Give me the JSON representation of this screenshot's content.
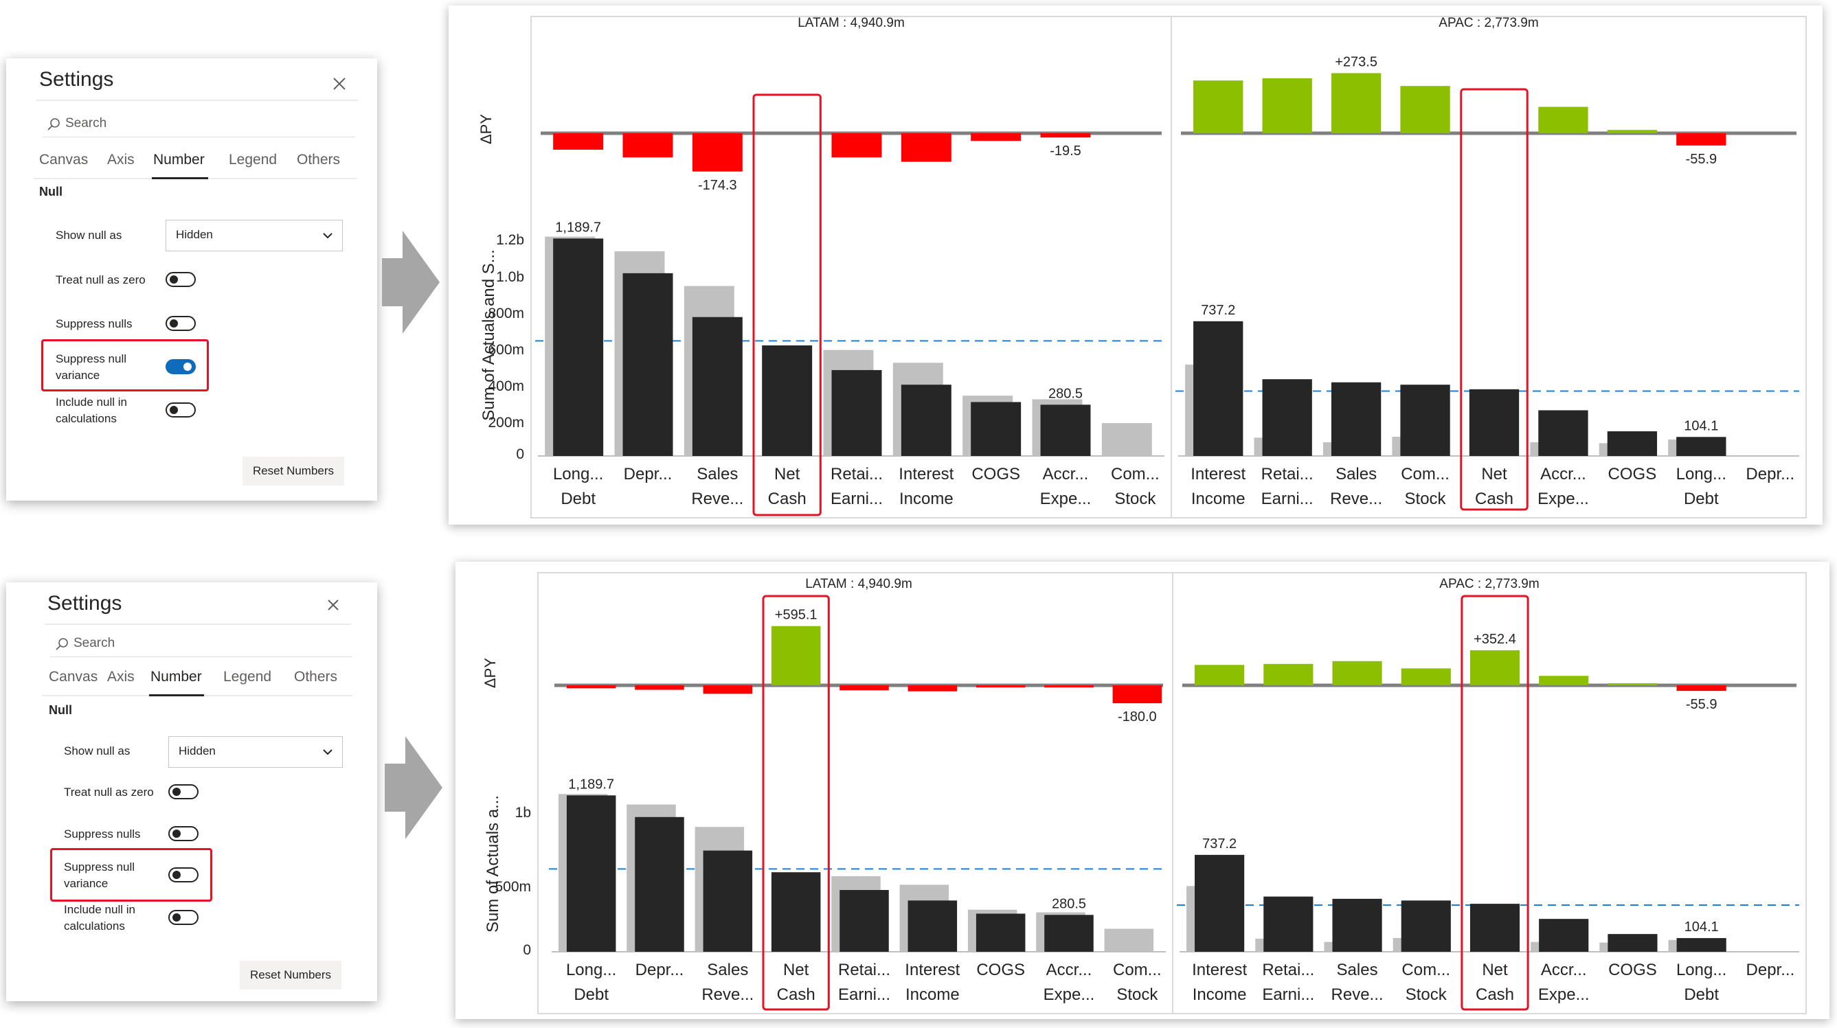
{
  "panels": [
    {
      "settings": {
        "title": "Settings",
        "search": {
          "placeholder": "Search"
        },
        "tabs": [
          "Canvas",
          "Axis",
          "Number",
          "Legend",
          "Others"
        ],
        "active_tab": "Number",
        "section": "Null",
        "show_null_as": {
          "label": "Show null as",
          "value": "Hidden"
        },
        "toggles": [
          {
            "label": [
              "Treat null as zero"
            ],
            "on": false
          },
          {
            "label": [
              "Suppress nulls"
            ],
            "on": false
          },
          {
            "label": [
              "Suppress null",
              "variance"
            ],
            "on": true
          },
          {
            "label": [
              "Include null in",
              "calculations"
            ],
            "on": false
          }
        ],
        "reset_button": "Reset Numbers"
      },
      "chart": {
        "variance_axis_label": "ΔPY",
        "values_axis_label": "Sum of Actuals and S...",
        "y_ticks": [
          "1.2b",
          "1.0b",
          "800m",
          "600m",
          "400m",
          "200m",
          "0"
        ],
        "groups": [
          {
            "title": "LATAM :  4,940.9m",
            "categories": [
              [
                "Long...",
                "Debt"
              ],
              [
                "Depr..."
              ],
              [
                "Sales",
                "Reve..."
              ],
              [
                "Net",
                "Cash"
              ],
              [
                "Retai...",
                "Earni..."
              ],
              [
                "Interest",
                "Income"
              ],
              [
                "COGS"
              ],
              [
                "Accr...",
                "Expe..."
              ],
              [
                "Com...",
                "Stock"
              ]
            ],
            "variance_labels": [
              "",
              "",
              "-174.3",
              "",
              "",
              "",
              "",
              "-19.5",
              ""
            ],
            "value_labels": [
              "1,189.7",
              "",
              "",
              "",
              "",
              "",
              "",
              "280.5",
              ""
            ]
          },
          {
            "title": "APAC :  2,773.9m",
            "categories": [
              [
                "Interest",
                "Income"
              ],
              [
                "Retai...",
                "Earni..."
              ],
              [
                "Sales",
                "Reve..."
              ],
              [
                "Com...",
                "Stock"
              ],
              [
                "Net",
                "Cash"
              ],
              [
                "Accr...",
                "Expe..."
              ],
              [
                "COGS"
              ],
              [
                "Long...",
                "Debt"
              ],
              [
                "Depr..."
              ]
            ],
            "variance_labels": [
              "",
              "",
              "+273.5",
              "",
              "",
              "",
              "",
              "-55.9",
              ""
            ],
            "value_labels": [
              "737.2",
              "",
              "",
              "",
              "",
              "",
              "",
              "104.1",
              ""
            ]
          }
        ]
      }
    },
    {
      "settings": {
        "title": "Settings",
        "search": {
          "placeholder": "Search"
        },
        "tabs": [
          "Canvas",
          "Axis",
          "Number",
          "Legend",
          "Others"
        ],
        "active_tab": "Number",
        "section": "Null",
        "show_null_as": {
          "label": "Show null as",
          "value": "Hidden"
        },
        "toggles": [
          {
            "label": [
              "Treat null as zero"
            ],
            "on": false
          },
          {
            "label": [
              "Suppress nulls"
            ],
            "on": false
          },
          {
            "label": [
              "Suppress null",
              "variance"
            ],
            "on": false
          },
          {
            "label": [
              "Include null in",
              "calculations"
            ],
            "on": false
          }
        ],
        "reset_button": "Reset Numbers"
      },
      "chart": {
        "variance_axis_label": "ΔPY",
        "values_axis_label": "Sum of Actuals a...",
        "y_ticks": [
          "1b",
          "500m",
          "0"
        ],
        "groups": [
          {
            "title": "LATAM :  4,940.9m",
            "categories": [
              [
                "Long...",
                "Debt"
              ],
              [
                "Depr..."
              ],
              [
                "Sales",
                "Reve..."
              ],
              [
                "Net",
                "Cash"
              ],
              [
                "Retai...",
                "Earni..."
              ],
              [
                "Interest",
                "Income"
              ],
              [
                "COGS"
              ],
              [
                "Accr...",
                "Expe..."
              ],
              [
                "Com...",
                "Stock"
              ]
            ],
            "variance_labels": [
              "",
              "",
              "",
              "+595.1",
              "",
              "",
              "",
              "",
              "-180.0"
            ],
            "value_labels": [
              "1,189.7",
              "",
              "",
              "",
              "",
              "",
              "",
              "280.5",
              ""
            ]
          },
          {
            "title": "APAC :  2,773.9m",
            "categories": [
              [
                "Interest",
                "Income"
              ],
              [
                "Retai...",
                "Earni..."
              ],
              [
                "Sales",
                "Reve..."
              ],
              [
                "Com...",
                "Stock"
              ],
              [
                "Net",
                "Cash"
              ],
              [
                "Accr...",
                "Expe..."
              ],
              [
                "COGS"
              ],
              [
                "Long...",
                "Debt"
              ],
              [
                "Depr..."
              ]
            ],
            "variance_labels": [
              "",
              "",
              "",
              "",
              "+352.4",
              "",
              "",
              "-55.9",
              ""
            ],
            "value_labels": [
              "737.2",
              "",
              "",
              "",
              "",
              "",
              "",
              "104.1",
              ""
            ]
          }
        ]
      }
    }
  ],
  "chart_data": [
    {
      "type": "bar",
      "group": "LATAM",
      "categories": [
        "Long... Debt",
        "Depr...",
        "Sales Reve...",
        "Net Cash",
        "Retai... Earni...",
        "Interest Income",
        "COGS",
        "Accr... Expe...",
        "Com... Stock"
      ],
      "ylim": [
        0,
        1300
      ],
      "reference_line": 630,
      "series": [
        {
          "name": "",
          "values": [
            1200,
            1120,
            930,
            null,
            580,
            510,
            330,
            310,
            180
          ]
        },
        {
          "name": "",
          "values": [
            1189.7,
            1000,
            760,
            605,
            470,
            390,
            295,
            280.5,
            null
          ]
        }
      ],
      "variance": [
        -75,
        -110,
        -174.3,
        null,
        -110,
        -130,
        -35,
        -19.5,
        null
      ]
    },
    {
      "type": "bar",
      "group": "APAC",
      "categories": [
        "Interest Income",
        "Retai... Earni...",
        "Sales Reve...",
        "Com... Stock",
        "Net Cash",
        "Accr... Expe...",
        "COGS",
        "Long... Debt",
        "Depr..."
      ],
      "ylim": [
        0,
        1300
      ],
      "reference_line": 355,
      "series": [
        {
          "name": "",
          "values": [
            500,
            100,
            75,
            105,
            null,
            75,
            70,
            90,
            null
          ]
        },
        {
          "name": "",
          "values": [
            737.2,
            420,
            403,
            390,
            365,
            250,
            135,
            104.1,
            null
          ]
        }
      ],
      "variance": [
        240,
        250,
        273.5,
        215,
        null,
        120,
        15,
        -55.9,
        null
      ]
    },
    {
      "type": "bar",
      "group": "LATAM",
      "categories": [
        "Long... Debt",
        "Depr...",
        "Sales Reve...",
        "Net Cash",
        "Retai... Earni...",
        "Interest Income",
        "COGS",
        "Accr... Expe...",
        "Com... Stock"
      ],
      "ylim": [
        0,
        1400
      ],
      "reference_line": 630,
      "series": [
        {
          "name": "",
          "values": [
            1200,
            1120,
            950,
            null,
            575,
            510,
            320,
            300,
            175
          ]
        },
        {
          "name": "",
          "values": [
            1189.7,
            1025,
            770,
            605,
            470,
            390,
            290,
            280.5,
            null
          ]
        }
      ],
      "variance": [
        -30,
        -45,
        -85,
        595.1,
        -50,
        -60,
        -15,
        -10,
        -180.0
      ]
    },
    {
      "type": "bar",
      "group": "APAC",
      "categories": [
        "Interest Income",
        "Retai... Earni...",
        "Sales Reve...",
        "Com... Stock",
        "Net Cash",
        "Accr... Expe...",
        "COGS",
        "Long... Debt",
        "Depr..."
      ],
      "ylim": [
        0,
        1400
      ],
      "reference_line": 355,
      "series": [
        {
          "name": "",
          "values": [
            500,
            100,
            75,
            105,
            null,
            75,
            70,
            90,
            null
          ]
        },
        {
          "name": "",
          "values": [
            737.2,
            420,
            403,
            390,
            365,
            250,
            135,
            104.1,
            null
          ]
        }
      ],
      "variance": [
        205,
        215,
        243,
        170,
        352.4,
        95,
        10,
        -55.9,
        null
      ]
    }
  ]
}
